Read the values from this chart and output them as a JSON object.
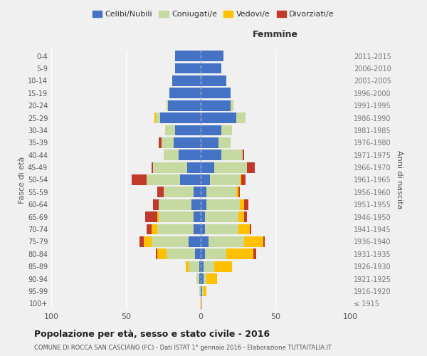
{
  "age_groups": [
    "100+",
    "95-99",
    "90-94",
    "85-89",
    "80-84",
    "75-79",
    "70-74",
    "65-69",
    "60-64",
    "55-59",
    "50-54",
    "45-49",
    "40-44",
    "35-39",
    "30-34",
    "25-29",
    "20-24",
    "15-19",
    "10-14",
    "5-9",
    "0-4"
  ],
  "birth_years": [
    "≤ 1915",
    "1916-1920",
    "1921-1925",
    "1926-1930",
    "1931-1935",
    "1936-1940",
    "1941-1945",
    "1946-1950",
    "1951-1955",
    "1956-1960",
    "1961-1965",
    "1966-1970",
    "1971-1975",
    "1976-1980",
    "1981-1985",
    "1986-1990",
    "1991-1995",
    "1996-2000",
    "2001-2005",
    "2006-2010",
    "2011-2015"
  ],
  "males": {
    "celibi": [
      0,
      0,
      1,
      1,
      4,
      8,
      5,
      5,
      6,
      5,
      14,
      9,
      15,
      18,
      17,
      27,
      22,
      21,
      19,
      17,
      17
    ],
    "coniugati": [
      0,
      1,
      2,
      7,
      19,
      25,
      24,
      23,
      22,
      20,
      22,
      23,
      10,
      8,
      7,
      3,
      1,
      0,
      0,
      0,
      0
    ],
    "vedovi": [
      0,
      0,
      0,
      2,
      6,
      5,
      4,
      1,
      0,
      0,
      0,
      0,
      0,
      0,
      0,
      1,
      0,
      0,
      0,
      0,
      0
    ],
    "divorziati": [
      0,
      0,
      0,
      0,
      1,
      3,
      3,
      8,
      4,
      4,
      10,
      1,
      0,
      2,
      0,
      0,
      0,
      0,
      0,
      0,
      0
    ]
  },
  "females": {
    "nubili": [
      0,
      1,
      2,
      2,
      3,
      5,
      3,
      3,
      4,
      4,
      6,
      9,
      14,
      12,
      14,
      24,
      20,
      20,
      17,
      14,
      15
    ],
    "coniugate": [
      0,
      1,
      2,
      7,
      14,
      24,
      22,
      22,
      22,
      20,
      20,
      22,
      14,
      8,
      7,
      6,
      2,
      0,
      0,
      0,
      0
    ],
    "vedove": [
      1,
      2,
      7,
      12,
      18,
      13,
      8,
      4,
      3,
      1,
      1,
      0,
      0,
      0,
      0,
      0,
      0,
      0,
      0,
      0,
      0
    ],
    "divorziate": [
      0,
      0,
      0,
      0,
      2,
      1,
      1,
      2,
      3,
      1,
      3,
      5,
      1,
      0,
      0,
      0,
      0,
      0,
      0,
      0,
      0
    ]
  },
  "colors": {
    "celibi": "#4472c4",
    "coniugati": "#c5d9a0",
    "vedovi": "#ffc000",
    "divorziati": "#c0392b"
  },
  "xlim": 100,
  "title": "Popolazione per età, sesso e stato civile - 2016",
  "subtitle": "COMUNE DI ROCCA SAN CASCIANO (FC) - Dati ISTAT 1° gennaio 2016 - Elaborazione TUTTAITALIA.IT",
  "ylabel_left": "Fasce di età",
  "ylabel_right": "Anni di nascita",
  "xlabel_right": "Femmine",
  "legend_labels": [
    "Celibi/Nubili",
    "Coniugati/e",
    "Vedovi/e",
    "Divorziati/e"
  ],
  "background_color": "#f0f0f0",
  "grid_color": "#ffffff"
}
